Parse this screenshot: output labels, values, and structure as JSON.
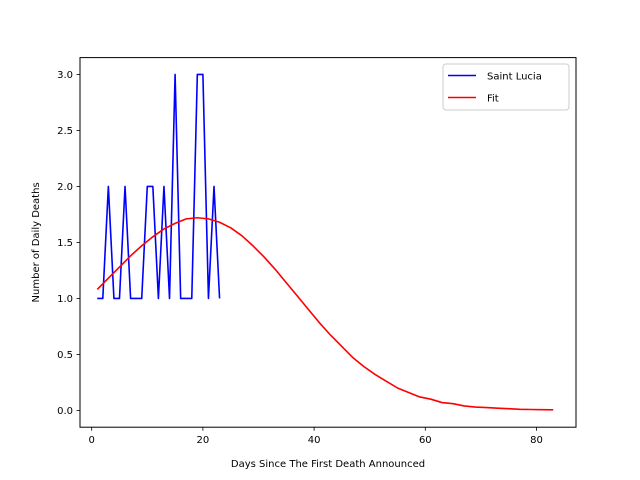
{
  "chart_data": {
    "type": "line",
    "title": "",
    "xlabel": "Days Since The First Death Announced",
    "ylabel": "Number of Daily Deaths",
    "xlim": [
      -2.1,
      87.1
    ],
    "ylim": [
      -0.15,
      3.15
    ],
    "xticks": [
      0,
      20,
      40,
      60,
      80
    ],
    "yticks": [
      0.0,
      0.5,
      1.0,
      1.5,
      2.0,
      2.5,
      3.0
    ],
    "xtick_labels": [
      "0",
      "20",
      "40",
      "60",
      "80"
    ],
    "ytick_labels": [
      "0.0",
      "0.5",
      "1.0",
      "1.5",
      "2.0",
      "2.5",
      "3.0"
    ],
    "grid": false,
    "legend_position": "top-right",
    "series": [
      {
        "name": "Saint Lucia",
        "color": "#0000ff",
        "x": [
          1,
          2,
          3,
          4,
          5,
          6,
          7,
          8,
          9,
          10,
          11,
          12,
          13,
          14,
          15,
          16,
          17,
          18,
          19,
          20,
          21,
          22,
          23
        ],
        "y": [
          1,
          1,
          2,
          1,
          1,
          2,
          1,
          1,
          1,
          2,
          2,
          1,
          2,
          1,
          3,
          1,
          1,
          1,
          3,
          3,
          1,
          2,
          1
        ]
      },
      {
        "name": "Fit",
        "color": "#ff0000",
        "x": [
          1,
          3,
          5,
          7,
          9,
          11,
          13,
          15,
          17,
          19,
          21,
          23,
          25,
          27,
          29,
          31,
          33,
          35,
          37,
          39,
          41,
          43,
          45,
          47,
          49,
          51,
          53,
          55,
          57,
          59,
          61,
          63,
          65,
          67,
          69,
          71,
          73,
          75,
          77,
          79,
          81,
          83
        ],
        "y": [
          1.08,
          1.18,
          1.28,
          1.38,
          1.47,
          1.55,
          1.62,
          1.67,
          1.71,
          1.72,
          1.71,
          1.68,
          1.63,
          1.56,
          1.47,
          1.37,
          1.26,
          1.14,
          1.02,
          0.9,
          0.78,
          0.67,
          0.57,
          0.47,
          0.39,
          0.32,
          0.26,
          0.2,
          0.16,
          0.12,
          0.1,
          0.07,
          0.06,
          0.04,
          0.03,
          0.025,
          0.02,
          0.015,
          0.01,
          0.008,
          0.006,
          0.005
        ]
      }
    ]
  }
}
